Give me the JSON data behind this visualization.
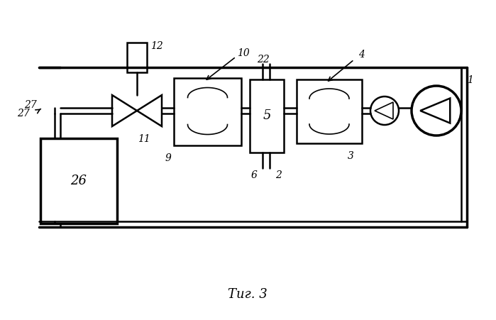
{
  "bg_color": "#ffffff",
  "line_color": "#000000",
  "fig_width": 6.99,
  "fig_height": 4.51,
  "dpi": 100,
  "caption": "Τиг. 3"
}
